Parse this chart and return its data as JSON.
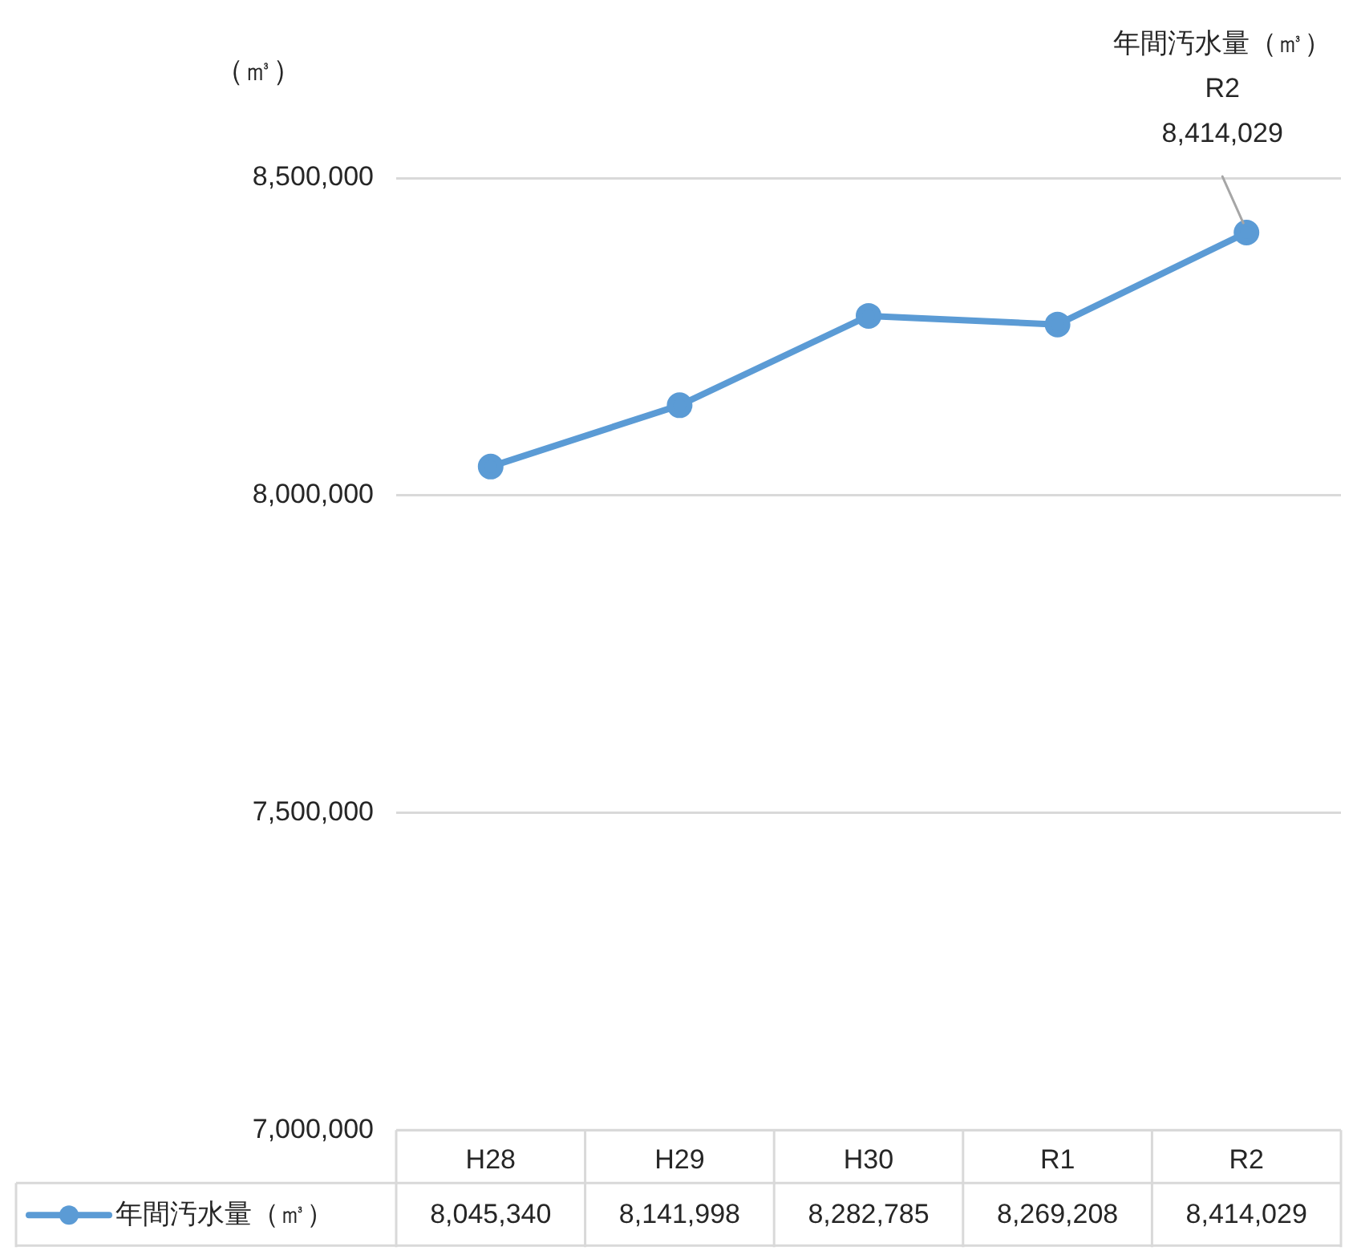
{
  "chart_data": {
    "type": "line",
    "ylabel": "（㎥）",
    "categories": [
      "H28",
      "H29",
      "H30",
      "R1",
      "R2"
    ],
    "series": [
      {
        "name": "年間汚水量（㎥）",
        "color": "#5b9bd5",
        "values": [
          8045340,
          8141998,
          8282785,
          8269208,
          8414029
        ],
        "value_labels": [
          "8,045,340",
          "8,141,998",
          "8,282,785",
          "8,269,208",
          "8,414,029"
        ]
      }
    ],
    "ylim": [
      7000000,
      8500000
    ],
    "yticks": [
      {
        "value": 7000000,
        "label": "7,000,000"
      },
      {
        "value": 7500000,
        "label": "7,500,000"
      },
      {
        "value": 8000000,
        "label": "8,000,000"
      },
      {
        "value": 8500000,
        "label": "8,500,000"
      }
    ],
    "grid": "y",
    "marker": "circle",
    "line_style": "solid",
    "legend": "bottom",
    "annotations": [
      {
        "text": "年間汚水量（㎥）\nR2\n8,414,029",
        "x": "R2",
        "y": 8414029
      }
    ]
  }
}
